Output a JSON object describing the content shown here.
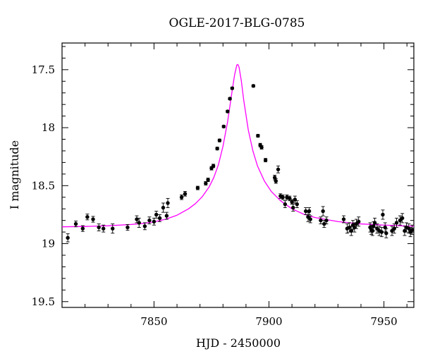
{
  "chart_data": {
    "type": "scatter",
    "title": "OGLE-2017-BLG-0785",
    "xlabel": "HJD - 2450000",
    "ylabel": "I magnitude",
    "xlim": [
      7810,
      7963
    ],
    "ylim": [
      19.55,
      17.27
    ],
    "y_inverted": true,
    "x_ticks": [
      7850,
      7900,
      7950
    ],
    "y_ticks": [
      17.5,
      18,
      18.5,
      19,
      19.5
    ],
    "x_tick_labels": [
      "7850",
      "7900",
      "7950"
    ],
    "y_tick_labels": [
      "17.5",
      "18",
      "18.5",
      "19",
      "19.5"
    ],
    "grid": false,
    "legend": "none",
    "colors": {
      "points": "#000000",
      "model": "#ff00ff"
    },
    "model": {
      "type": "microlensing-fit",
      "t0": 7886.2,
      "peak_mag": 17.45,
      "baseline_mag": 18.86,
      "points": [
        [
          7810,
          18.855
        ],
        [
          7820,
          18.852
        ],
        [
          7830,
          18.846
        ],
        [
          7840,
          18.835
        ],
        [
          7845,
          18.826
        ],
        [
          7850,
          18.812
        ],
        [
          7855,
          18.79
        ],
        [
          7860,
          18.755
        ],
        [
          7865,
          18.7
        ],
        [
          7868,
          18.655
        ],
        [
          7871,
          18.595
        ],
        [
          7874,
          18.51
        ],
        [
          7876,
          18.43
        ],
        [
          7878,
          18.32
        ],
        [
          7880,
          18.16
        ],
        [
          7882,
          17.95
        ],
        [
          7884,
          17.68
        ],
        [
          7885,
          17.55
        ],
        [
          7886,
          17.46
        ],
        [
          7886.5,
          17.455
        ],
        [
          7887,
          17.48
        ],
        [
          7888,
          17.6
        ],
        [
          7889,
          17.76
        ],
        [
          7891,
          18.02
        ],
        [
          7893,
          18.2
        ],
        [
          7895,
          18.33
        ],
        [
          7898,
          18.46
        ],
        [
          7901,
          18.55
        ],
        [
          7905,
          18.63
        ],
        [
          7910,
          18.7
        ],
        [
          7915,
          18.745
        ],
        [
          7920,
          18.775
        ],
        [
          7930,
          18.81
        ],
        [
          7940,
          18.83
        ],
        [
          7950,
          18.84
        ],
        [
          7963,
          18.85
        ]
      ]
    },
    "series": [
      {
        "points": [
          [
            7812.5,
            18.95,
            0.035
          ],
          [
            7816,
            18.83,
            0.025
          ],
          [
            7819,
            18.87,
            0.025
          ],
          [
            7821,
            18.77,
            0.025
          ],
          [
            7823.5,
            18.79,
            0.025
          ],
          [
            7826,
            18.86,
            0.03
          ],
          [
            7828,
            18.87,
            0.03
          ],
          [
            7832,
            18.87,
            0.04
          ],
          [
            7838.5,
            18.86,
            0.025
          ],
          [
            7842.5,
            18.79,
            0.03
          ],
          [
            7843.5,
            18.82,
            0.04
          ],
          [
            7846,
            18.85,
            0.03
          ],
          [
            7848,
            18.8,
            0.03
          ],
          [
            7850,
            18.81,
            0.03
          ],
          [
            7851,
            18.75,
            0.03
          ],
          [
            7852.5,
            18.78,
            0.03
          ],
          [
            7854,
            18.69,
            0.04
          ],
          [
            7855.5,
            18.76,
            0.03
          ],
          [
            7856,
            18.65,
            0.04
          ],
          [
            7862,
            18.6,
            0.02
          ],
          [
            7863.5,
            18.57,
            0.02
          ],
          [
            7869,
            18.52,
            0.015
          ],
          [
            7872.5,
            18.48,
            0.015
          ],
          [
            7873.5,
            18.45,
            0.015
          ],
          [
            7875,
            18.35,
            0.015
          ],
          [
            7875.8,
            18.33,
            0.015
          ],
          [
            7877.5,
            18.18,
            0.012
          ],
          [
            7878.5,
            18.11,
            0.012
          ],
          [
            7880.3,
            17.99,
            0.01
          ],
          [
            7882,
            17.86,
            0.01
          ],
          [
            7883,
            17.75,
            0.01
          ],
          [
            7884,
            17.66,
            0.01
          ],
          [
            7893.2,
            17.64,
            0.01
          ],
          [
            7895.2,
            18.07,
            0.012
          ],
          [
            7896.2,
            18.15,
            0.015
          ],
          [
            7896.8,
            18.17,
            0.015
          ],
          [
            7898.5,
            18.28,
            0.015
          ],
          [
            7902.5,
            18.43,
            0.02
          ],
          [
            7903,
            18.46,
            0.02
          ],
          [
            7904,
            18.36,
            0.03
          ],
          [
            7905,
            18.59,
            0.02
          ],
          [
            7906,
            18.6,
            0.02
          ],
          [
            7907,
            18.66,
            0.03
          ],
          [
            7907.8,
            18.6,
            0.02
          ],
          [
            7909,
            18.61,
            0.02
          ],
          [
            7910,
            18.64,
            0.02
          ],
          [
            7910.5,
            18.69,
            0.03
          ],
          [
            7911.3,
            18.62,
            0.03
          ],
          [
            7912.2,
            18.66,
            0.03
          ],
          [
            7916,
            18.72,
            0.03
          ],
          [
            7917,
            18.77,
            0.04
          ],
          [
            7917.5,
            18.72,
            0.03
          ],
          [
            7918,
            18.79,
            0.03
          ],
          [
            7922.5,
            18.8,
            0.03
          ],
          [
            7923.5,
            18.72,
            0.04
          ],
          [
            7924,
            18.83,
            0.03
          ],
          [
            7925,
            18.8,
            0.03
          ],
          [
            7932.5,
            18.79,
            0.03
          ],
          [
            7934,
            18.87,
            0.04
          ],
          [
            7935,
            18.86,
            0.04
          ],
          [
            7935.8,
            18.89,
            0.04
          ],
          [
            7936.5,
            18.84,
            0.04
          ],
          [
            7937.2,
            18.86,
            0.04
          ],
          [
            7938,
            18.83,
            0.04
          ],
          [
            7939,
            18.81,
            0.04
          ],
          [
            7944,
            18.86,
            0.04
          ],
          [
            7944.5,
            18.88,
            0.04
          ],
          [
            7945,
            18.89,
            0.04
          ],
          [
            7945.5,
            18.85,
            0.04
          ],
          [
            7946,
            18.82,
            0.04
          ],
          [
            7947,
            18.87,
            0.04
          ],
          [
            7948,
            18.89,
            0.04
          ],
          [
            7949,
            18.9,
            0.04
          ],
          [
            7949.5,
            18.75,
            0.04
          ],
          [
            7950.5,
            18.86,
            0.04
          ],
          [
            7951,
            18.91,
            0.04
          ],
          [
            7953.5,
            18.89,
            0.04
          ],
          [
            7954.5,
            18.87,
            0.04
          ],
          [
            7955.5,
            18.82,
            0.04
          ],
          [
            7957,
            18.8,
            0.04
          ],
          [
            7958,
            18.78,
            0.04
          ],
          [
            7959,
            18.89,
            0.04
          ],
          [
            7959.8,
            18.86,
            0.04
          ],
          [
            7960.8,
            18.87,
            0.04
          ],
          [
            7961.5,
            18.9,
            0.04
          ],
          [
            7962.3,
            18.88,
            0.04
          ]
        ]
      }
    ]
  }
}
